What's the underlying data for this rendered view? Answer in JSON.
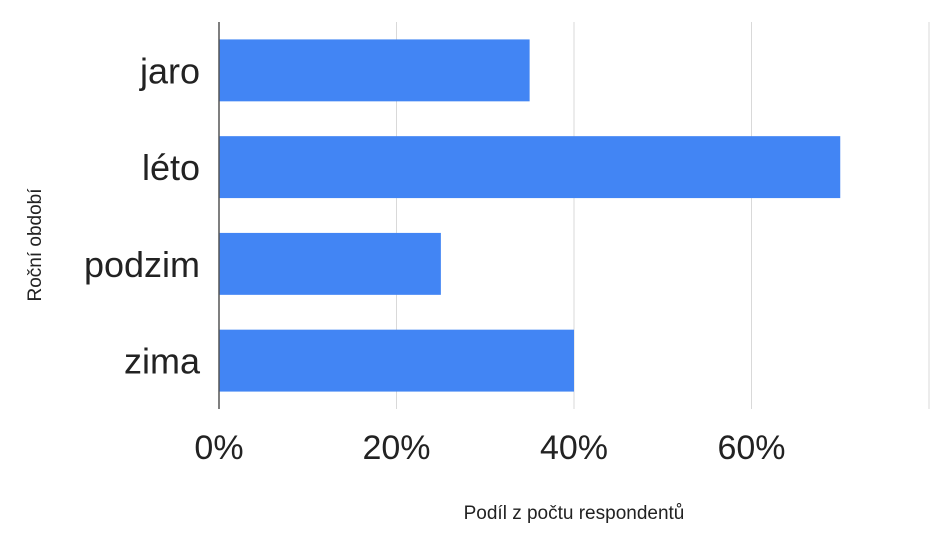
{
  "chart_data": {
    "type": "bar",
    "orientation": "horizontal",
    "categories": [
      "jaro",
      "léto",
      "podzim",
      "zima"
    ],
    "values": [
      0.35,
      0.7,
      0.25,
      0.4
    ],
    "xlabel": "Podíl z počtu respondentů",
    "ylabel": "Roční období",
    "xlim": [
      0,
      0.8
    ],
    "x_ticks": [
      0,
      0.2,
      0.4,
      0.6
    ],
    "x_tick_labels": [
      "0%",
      "20%",
      "40%",
      "60%"
    ],
    "grid": "vertical",
    "legend": "none",
    "colors": {
      "bar": "#4285f4",
      "grid": "#d9d9d9",
      "axis": "#555555"
    }
  }
}
